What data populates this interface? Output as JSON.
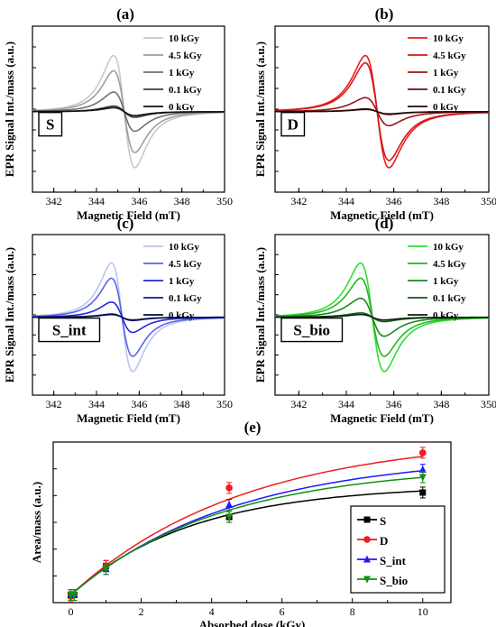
{
  "chart_data": [
    {
      "type": "line",
      "panel": "(a)",
      "sample_label": "S",
      "xlabel": "Magnetic Field (mT)",
      "ylabel": "EPR Signal Int./mass (a.u.)",
      "xlim": [
        341,
        350
      ],
      "xticks": [
        342,
        344,
        346,
        348,
        350
      ],
      "center": 345.3,
      "series": [
        {
          "name": "10 kGy",
          "color": "#c8c8c8",
          "amplitude": 1.0
        },
        {
          "name": "4.5 kGy",
          "color": "#9e9e9e",
          "amplitude": 0.73
        },
        {
          "name": "1 kGy",
          "color": "#707070",
          "amplitude": 0.35
        },
        {
          "name": "0.1 kGy",
          "color": "#3c3c3c",
          "amplitude": 0.1
        },
        {
          "name": "0 kGy",
          "color": "#111111",
          "amplitude": 0.07
        }
      ]
    },
    {
      "type": "line",
      "panel": "(b)",
      "sample_label": "D",
      "xlabel": "Magnetic Field (mT)",
      "ylabel": "EPR Signal Int./mass (a.u.)",
      "xlim": [
        341,
        350
      ],
      "xticks": [
        342,
        344,
        346,
        348,
        350
      ],
      "center": 345.3,
      "series": [
        {
          "name": "10 kGy",
          "color": "#ee1c1c",
          "amplitude": 1.0
        },
        {
          "name": "4.5 kGy",
          "color": "#d01818",
          "amplitude": 0.87
        },
        {
          "name": "1 kGy",
          "color": "#9c1414",
          "amplitude": 0.25
        },
        {
          "name": "0.1 kGy",
          "color": "#6e1010",
          "amplitude": 0.05
        },
        {
          "name": "0 kGy",
          "color": "#2a0505",
          "amplitude": 0.04
        }
      ]
    },
    {
      "type": "line",
      "panel": "(c)",
      "sample_label": "S_int",
      "xlabel": "Magnetic Field (mT)",
      "ylabel": "EPR Signal Int./mass (a.u.)",
      "xlim": [
        341,
        350
      ],
      "xticks": [
        342,
        344,
        346,
        348,
        350
      ],
      "center": 345.2,
      "series": [
        {
          "name": "10 kGy",
          "color": "#bcc3f0",
          "amplitude": 1.0
        },
        {
          "name": "4.5 kGy",
          "color": "#5a63ea",
          "amplitude": 0.72
        },
        {
          "name": "1 kGy",
          "color": "#1f2ad8",
          "amplitude": 0.28
        },
        {
          "name": "0.1 kGy",
          "color": "#101a9a",
          "amplitude": 0.06
        },
        {
          "name": "0 kGy",
          "color": "#050a40",
          "amplitude": 0.05
        }
      ]
    },
    {
      "type": "line",
      "panel": "(d)",
      "sample_label": "S_bio",
      "xlabel": "Magnetic Field (mT)",
      "ylabel": "EPR Signal Int./mass (a.u.)",
      "xlim": [
        341,
        350
      ],
      "xticks": [
        342,
        344,
        346,
        348,
        350
      ],
      "center": 345.1,
      "series": [
        {
          "name": "10 kGy",
          "color": "#2fe02f",
          "amplitude": 1.0
        },
        {
          "name": "4.5 kGy",
          "color": "#22b822",
          "amplitude": 0.72
        },
        {
          "name": "1 kGy",
          "color": "#1a8a1a",
          "amplitude": 0.35
        },
        {
          "name": "0.1 kGy",
          "color": "#0f5a0f",
          "amplitude": 0.08
        },
        {
          "name": "0 kGy",
          "color": "#062006",
          "amplitude": 0.05
        }
      ]
    },
    {
      "type": "scatter",
      "panel": "(e)",
      "xlabel": "Absorbed dose (kGy)",
      "ylabel": "Area/mass (a.u.)",
      "xlim": [
        -0.5,
        10.8
      ],
      "xticks": [
        0,
        2,
        4,
        6,
        8,
        10
      ],
      "ylim": [
        0,
        1.05
      ],
      "legend_position": "bottom-right",
      "series": [
        {
          "name": "S",
          "color": "#000000",
          "marker": "square",
          "x": [
            0,
            0.1,
            1,
            4.5,
            10
          ],
          "y": [
            0.05,
            0.05,
            0.24,
            0.56,
            0.72
          ],
          "fit_plateau": 0.77,
          "fit_rate": 0.29
        },
        {
          "name": "D",
          "color": "#ee1c1c",
          "marker": "circle",
          "x": [
            0,
            0.1,
            1,
            4.5,
            10
          ],
          "y": [
            0.04,
            0.05,
            0.24,
            0.75,
            0.98
          ],
          "fit_plateau": 1.09,
          "fit_rate": 0.205
        },
        {
          "name": "S_int",
          "color": "#1a1aff",
          "marker": "triangle-up",
          "x": [
            0,
            0.1,
            1,
            4.5,
            10
          ],
          "y": [
            0.05,
            0.05,
            0.22,
            0.64,
            0.87
          ],
          "fit_plateau": 0.97,
          "fit_rate": 0.215
        },
        {
          "name": "S_bio",
          "color": "#139013",
          "marker": "triangle-down",
          "x": [
            0,
            0.1,
            1,
            4.5,
            10
          ],
          "y": [
            0.05,
            0.05,
            0.22,
            0.56,
            0.82
          ],
          "fit_plateau": 0.9,
          "fit_rate": 0.235
        }
      ]
    }
  ]
}
